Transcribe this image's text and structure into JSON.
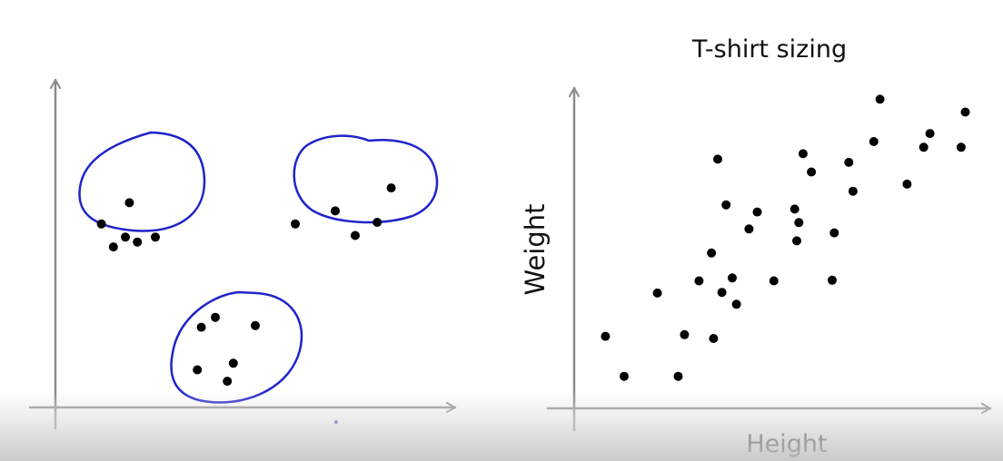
{
  "chart_data": [
    {
      "type": "scatter",
      "title": "",
      "xlabel": "",
      "ylabel": "",
      "grid": false,
      "legend": "none",
      "axis_color": "#8a8a8a",
      "point_color": "#000000",
      "cluster_color": "#1f24c8",
      "clusters": [
        {
          "points": [
            [
              0.115,
              0.56
            ],
            [
              0.145,
              0.49
            ],
            [
              0.175,
              0.52
            ],
            [
              0.185,
              0.625
            ],
            [
              0.205,
              0.505
            ],
            [
              0.25,
              0.52
            ]
          ]
        },
        {
          "points": [
            [
              0.75,
              0.525
            ],
            [
              0.84,
              0.67
            ],
            [
              0.7,
              0.6
            ],
            [
              0.6,
              0.56
            ],
            [
              0.805,
              0.565
            ]
          ]
        },
        {
          "points": [
            [
              0.355,
              0.115
            ],
            [
              0.43,
              0.08
            ],
            [
              0.445,
              0.135
            ],
            [
              0.4,
              0.275
            ],
            [
              0.5,
              0.25
            ],
            [
              0.365,
              0.245
            ]
          ]
        }
      ]
    },
    {
      "type": "scatter",
      "title": "T-shirt sizing",
      "xlabel": "Height",
      "ylabel": "Weight",
      "grid": false,
      "legend": "none",
      "axis_color": "#8a8a8a",
      "point_color": "#000000",
      "x": [
        0.075,
        0.12,
        0.2,
        0.25,
        0.265,
        0.3,
        0.33,
        0.335,
        0.355,
        0.38,
        0.39,
        0.42,
        0.365,
        0.345,
        0.44,
        0.48,
        0.53,
        0.535,
        0.54,
        0.55,
        0.57,
        0.62,
        0.625,
        0.66,
        0.67,
        0.72,
        0.735,
        0.8,
        0.84,
        0.855,
        0.93,
        0.94
      ],
      "y": [
        0.225,
        0.1,
        0.36,
        0.1,
        0.23,
        0.398,
        0.485,
        0.218,
        0.362,
        0.407,
        0.325,
        0.56,
        0.635,
        0.778,
        0.613,
        0.398,
        0.622,
        0.523,
        0.58,
        0.795,
        0.738,
        0.4,
        0.548,
        0.768,
        0.678,
        0.833,
        0.965,
        0.7,
        0.815,
        0.858,
        0.815,
        0.925
      ]
    }
  ]
}
